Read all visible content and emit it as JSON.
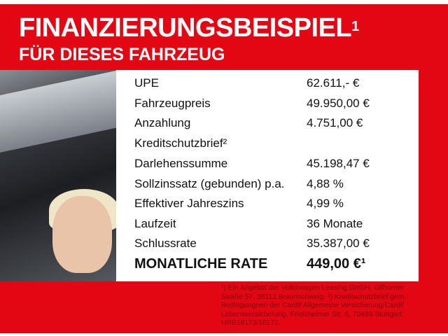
{
  "header": {
    "title": "FINANZIERUNGSBEISPIEL",
    "title_sup": "1",
    "subtitle": "FÜR DIESES FAHRZEUG"
  },
  "rows": [
    {
      "label": "UPE",
      "value": "62.611,- €"
    },
    {
      "label": "Fahrzeugpreis",
      "value": "49.950,00 €"
    },
    {
      "label": "Anzahlung",
      "value": "4.751,00 €"
    },
    {
      "label": "Kreditschutzbrief²",
      "value": ""
    },
    {
      "label": "Darlehenssumme",
      "value": "45.198,47 €"
    },
    {
      "label": "Sollzinssatz (gebunden) p.a.",
      "value": "4,88 %"
    },
    {
      "label": "Effektiver Jahreszins",
      "value": "4,99 %"
    },
    {
      "label": "Laufzeit",
      "value": "36 Monate"
    },
    {
      "label": "Schlussrate",
      "value": "35.387,00 €"
    }
  ],
  "monthly": {
    "label": "MONATLICHE RATE",
    "value": "449,00 €¹"
  },
  "footnote": "¹) Ein Angebot der Volkswagen Leasing GmbH, Gifhorner Straße 57, 38112 Braunschweig. ²) Kreditschutzbrief gem. Bedingungnen der Cardif Allgemeine Versicherung/Cardif Lebensversicherung, Friolzheimer Str. 6, 70499 Stuttgart; HRB18173/18172.",
  "colors": {
    "brand_red": "#e30613"
  }
}
